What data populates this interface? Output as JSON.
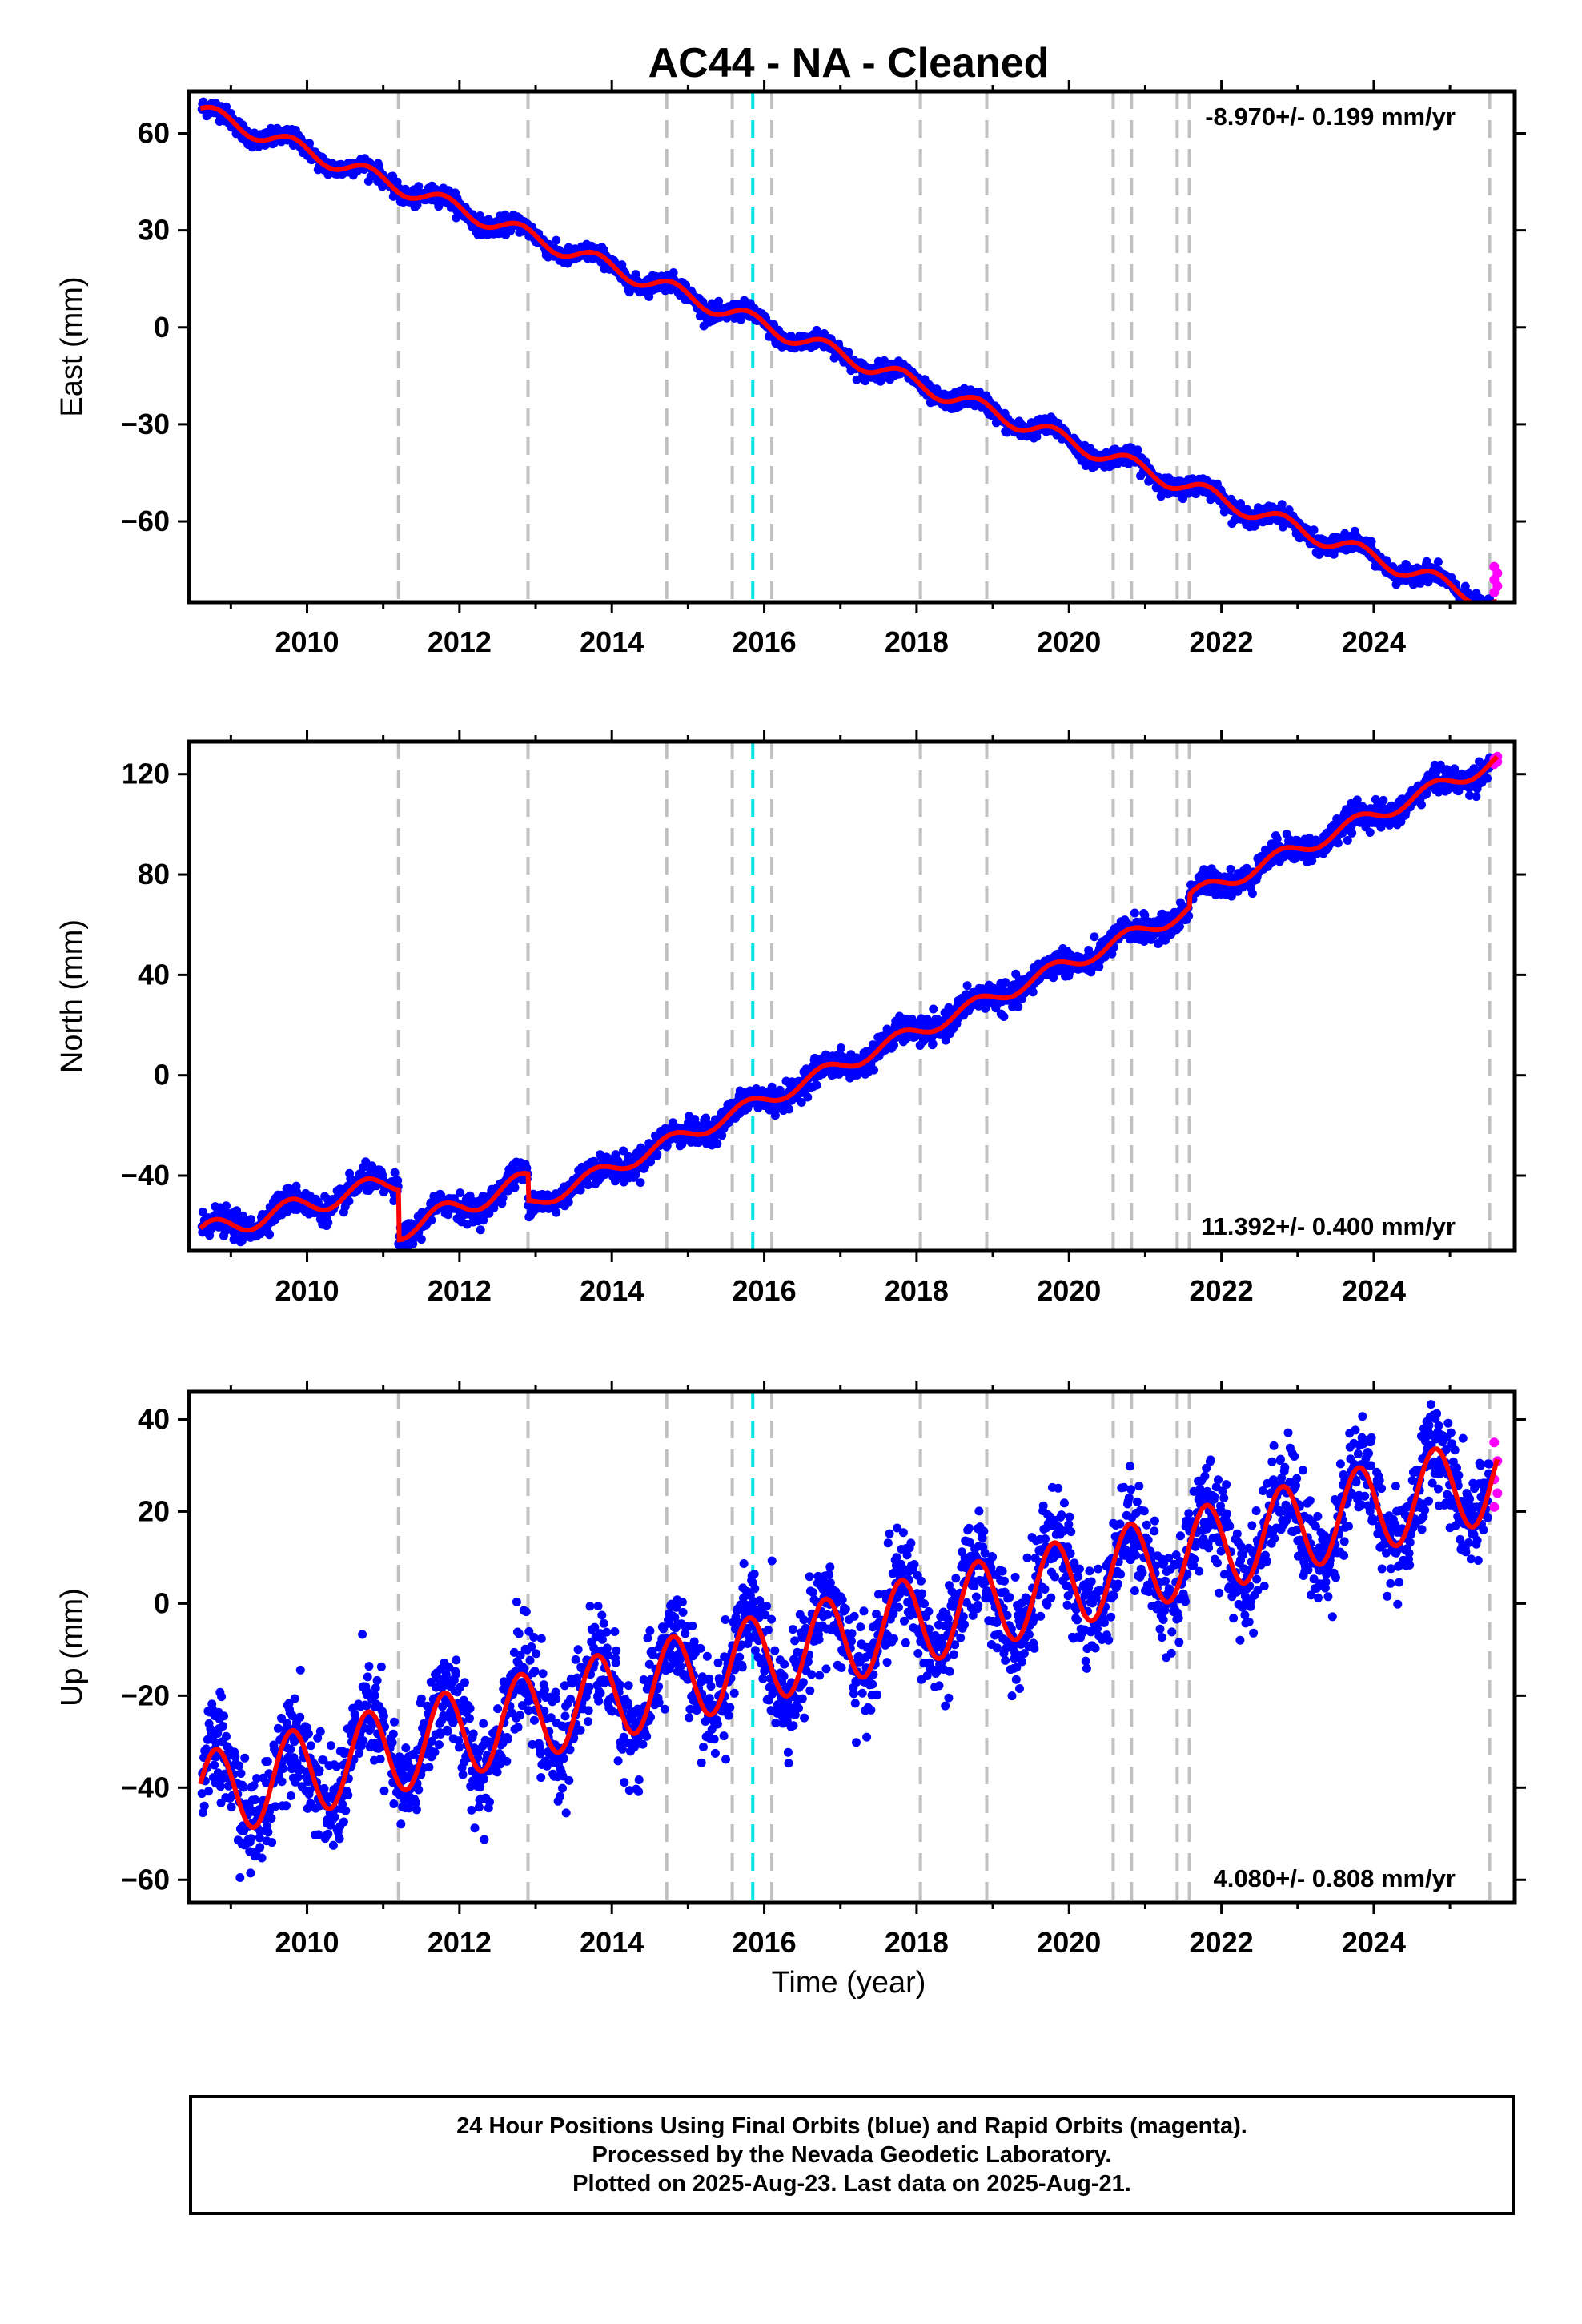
{
  "title": "AC44  - NA - Cleaned",
  "xlabel": "Time (year)",
  "colors": {
    "final_orbits": "#0000ff",
    "rapid_orbits": "#ff00ff",
    "model": "#ff0000",
    "event_line": "#c0c0c0",
    "highlight_event": "#00e5e5"
  },
  "chart_data": [
    {
      "type": "scatter",
      "component": "east",
      "ylabel": "East (mm)",
      "ylim": [
        -85,
        73
      ],
      "yticks": [
        60,
        30,
        0,
        -30,
        -60
      ],
      "xlim": [
        2008.45,
        2025.85
      ],
      "xticks": [
        2010,
        2012,
        2014,
        2016,
        2018,
        2020,
        2022,
        2024
      ],
      "rate_label": "-8.970+/- 0.199 mm/yr",
      "rate_position": "top-right",
      "events_gray": [
        2011.2,
        2012.9,
        2014.72,
        2015.58,
        2016.1,
        2018.05,
        2018.92,
        2020.58,
        2020.82,
        2021.42,
        2021.58,
        2025.52
      ],
      "event_cyan": 2015.85,
      "model_trend": {
        "intercept": 67,
        "start_year": 2008.6,
        "rate": -8.97,
        "annual_amp": 2.5,
        "offsets": [
          {
            "year": 2014.72,
            "value": 4
          }
        ]
      },
      "noise_mm": 1.3,
      "rapid_orbit_values": [
        -74,
        -76,
        -78,
        -80,
        -82
      ]
    },
    {
      "type": "scatter",
      "component": "north",
      "ylabel": "North (mm)",
      "ylim": [
        -70,
        133
      ],
      "yticks": [
        120,
        80,
        40,
        0,
        -40
      ],
      "xlim": [
        2008.45,
        2025.85
      ],
      "xticks": [
        2010,
        2012,
        2014,
        2016,
        2018,
        2020,
        2022,
        2024
      ],
      "rate_label": "11.392+/- 0.400 mm/yr",
      "rate_position": "bottom-right",
      "events_gray": [
        2011.2,
        2012.9,
        2014.72,
        2015.58,
        2016.1,
        2018.05,
        2018.92,
        2020.58,
        2020.82,
        2021.42,
        2021.58,
        2025.52
      ],
      "event_cyan": 2015.85,
      "model_segments": [
        {
          "from": 2008.6,
          "to": 2011.2,
          "start": -63,
          "end": -42,
          "annual_amp": 4
        },
        {
          "from": 2011.2,
          "to": 2012.9,
          "start": -62,
          "end": -42,
          "annual_amp": 4
        },
        {
          "from": 2012.9,
          "to": 2021.58,
          "start": -52,
          "end": 66,
          "annual_amp": 3
        },
        {
          "from": 2021.58,
          "to": 2025.6,
          "start": 71,
          "end": 125,
          "annual_amp": 3
        }
      ],
      "noise_mm": 2.5,
      "rapid_orbit_values": [
        124,
        125,
        126,
        127
      ]
    },
    {
      "type": "scatter",
      "component": "up",
      "ylabel": "Up (mm)",
      "ylim": [
        -65,
        46
      ],
      "yticks": [
        40,
        20,
        0,
        -20,
        -40,
        -60
      ],
      "xlim": [
        2008.45,
        2025.85
      ],
      "xticks": [
        2010,
        2012,
        2014,
        2016,
        2018,
        2020,
        2022,
        2024
      ],
      "rate_label": "4.080+/- 0.808 mm/yr",
      "rate_position": "bottom-right",
      "events_gray": [
        2011.2,
        2012.9,
        2014.72,
        2015.58,
        2016.1,
        2018.05,
        2018.92,
        2020.58,
        2020.82,
        2021.42,
        2021.58,
        2025.52
      ],
      "event_cyan": 2015.85,
      "model_trend": {
        "intercept": -42,
        "start_year": 2008.6,
        "rate": 4.08,
        "annual_amp": 9.5,
        "offsets": []
      },
      "noise_mm": 5.5,
      "rapid_orbit_values": [
        21,
        24,
        27,
        31,
        35
      ]
    }
  ],
  "footer": {
    "line1": "24 Hour Positions Using Final Orbits (blue) and Rapid Orbits (magenta).",
    "line2": "Processed by the Nevada Geodetic Laboratory.",
    "line3": "Plotted on 2025-Aug-23. Last data on 2025-Aug-21."
  }
}
